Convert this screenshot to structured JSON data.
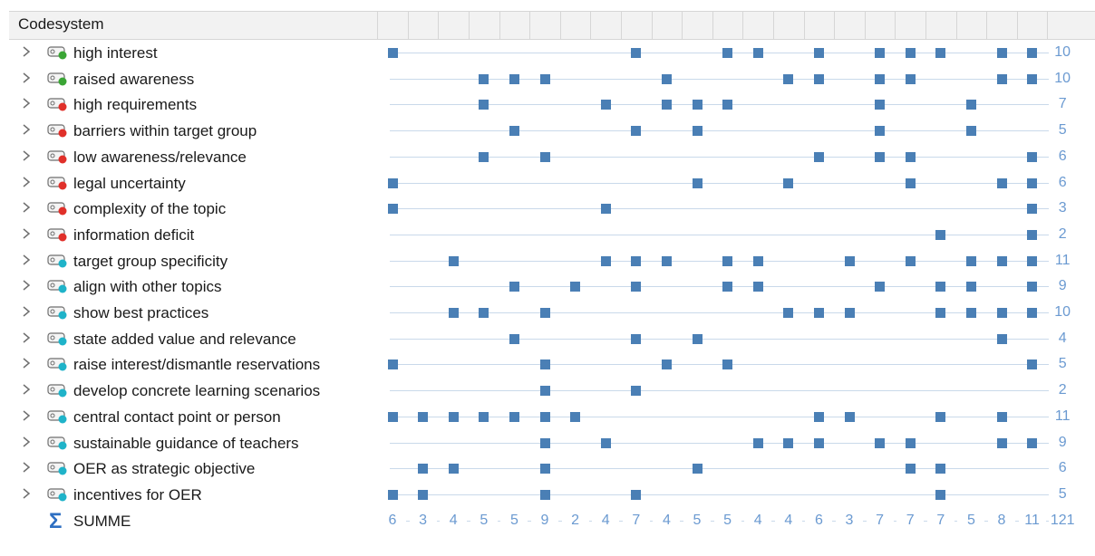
{
  "header": {
    "title": "Codesystem"
  },
  "columns": 23,
  "colors": {
    "green": "#3aa535",
    "red": "#e0302a",
    "cyan": "#1fb3c9",
    "cell": "#4a7fb5",
    "count": "#6b9ad1"
  },
  "codes": [
    {
      "label": "high interest",
      "color": "green",
      "cells": [
        0,
        8,
        11,
        12,
        14,
        16,
        17,
        18,
        20,
        21
      ],
      "total": "10"
    },
    {
      "label": "raised awareness",
      "color": "green",
      "cells": [
        3,
        4,
        5,
        9,
        13,
        14,
        16,
        17,
        20,
        21
      ],
      "total": "10"
    },
    {
      "label": "high requirements",
      "color": "red",
      "cells": [
        3,
        7,
        9,
        10,
        11,
        16,
        19
      ],
      "total": "7"
    },
    {
      "label": "barriers within target group",
      "color": "red",
      "cells": [
        4,
        8,
        10,
        16,
        19
      ],
      "total": "5"
    },
    {
      "label": "low awareness/relevance",
      "color": "red",
      "cells": [
        3,
        5,
        14,
        16,
        17,
        21
      ],
      "total": "6"
    },
    {
      "label": "legal uncertainty",
      "color": "red",
      "cells": [
        0,
        10,
        13,
        17,
        20,
        21
      ],
      "total": "6"
    },
    {
      "label": "complexity of the topic",
      "color": "red",
      "cells": [
        0,
        7,
        21
      ],
      "total": "3"
    },
    {
      "label": "information deficit",
      "color": "red",
      "cells": [
        18,
        21
      ],
      "total": "2"
    },
    {
      "label": "target group specificity",
      "color": "cyan",
      "cells": [
        2,
        7,
        8,
        9,
        11,
        12,
        15,
        17,
        19,
        20,
        21
      ],
      "total": "11"
    },
    {
      "label": "align with other topics",
      "color": "cyan",
      "cells": [
        4,
        6,
        8,
        11,
        12,
        16,
        18,
        19,
        21
      ],
      "total": "9"
    },
    {
      "label": "show best practices",
      "color": "cyan",
      "cells": [
        2,
        3,
        5,
        13,
        14,
        15,
        18,
        19,
        20,
        21
      ],
      "total": "10"
    },
    {
      "label": "state added value and relevance",
      "color": "cyan",
      "cells": [
        4,
        8,
        10,
        20
      ],
      "total": "4"
    },
    {
      "label": "raise interest/dismantle reservations",
      "color": "cyan",
      "cells": [
        0,
        5,
        9,
        11,
        21
      ],
      "total": "5"
    },
    {
      "label": "develop concrete learning scenarios",
      "color": "cyan",
      "cells": [
        5,
        8
      ],
      "total": "2"
    },
    {
      "label": "central contact point or person",
      "color": "cyan",
      "cells": [
        0,
        1,
        2,
        3,
        4,
        5,
        6,
        14,
        15,
        18,
        20
      ],
      "total": "11"
    },
    {
      "label": "sustainable guidance of teachers",
      "color": "cyan",
      "cells": [
        5,
        7,
        12,
        13,
        14,
        16,
        17,
        20,
        21
      ],
      "total": "9"
    },
    {
      "label": "OER as strategic objective",
      "color": "cyan",
      "cells": [
        1,
        2,
        5,
        10,
        17,
        18
      ],
      "total": "6"
    },
    {
      "label": "incentives for OER",
      "color": "cyan",
      "cells": [
        0,
        1,
        5,
        8,
        18
      ],
      "total": "5"
    }
  ],
  "summary": {
    "label": "SUMME",
    "values": [
      "6",
      "3",
      "4",
      "5",
      "5",
      "9",
      "2",
      "4",
      "7",
      "4",
      "5",
      "5",
      "4",
      "4",
      "6",
      "3",
      "7",
      "7",
      "7",
      "5",
      "8",
      "11",
      "121"
    ]
  }
}
